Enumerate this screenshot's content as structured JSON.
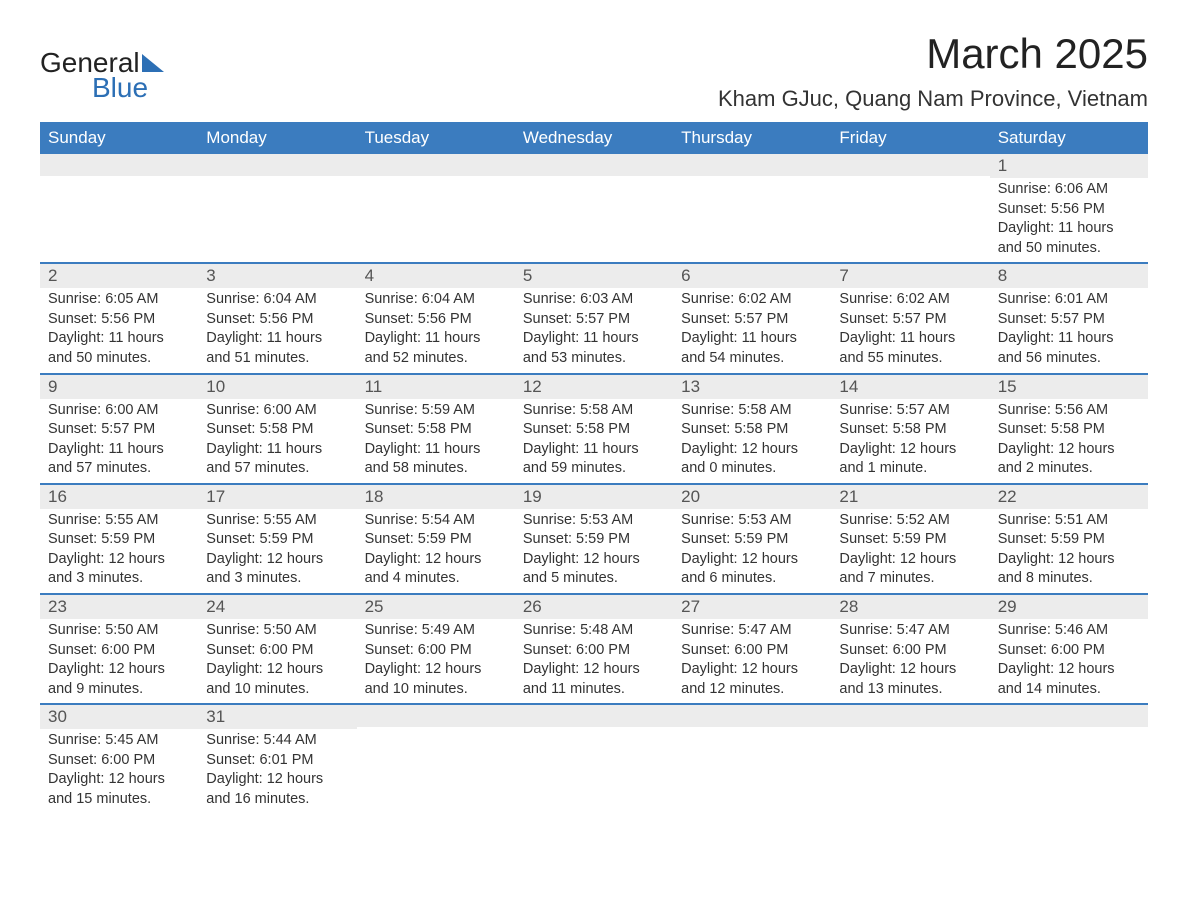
{
  "brand": {
    "name1": "General",
    "name2": "Blue"
  },
  "title": "March 2025",
  "location": "Kham GJuc, Quang Nam Province, Vietnam",
  "colors": {
    "header_bg": "#3b7cbf",
    "header_text": "#ffffff",
    "daynum_bg": "#ececec",
    "row_border": "#3b7cbf",
    "brand_blue": "#2c6fb5",
    "text": "#333333",
    "bg": "#ffffff"
  },
  "typography": {
    "title_fontsize_pt": 32,
    "location_fontsize_pt": 17,
    "header_fontsize_pt": 13,
    "daynum_fontsize_pt": 13,
    "body_fontsize_pt": 11
  },
  "layout": {
    "type": "calendar-table",
    "columns": 7,
    "rows": 6,
    "first_day_column": 6,
    "days_in_month": 31
  },
  "weekdays": [
    "Sunday",
    "Monday",
    "Tuesday",
    "Wednesday",
    "Thursday",
    "Friday",
    "Saturday"
  ],
  "labels": {
    "sunrise": "Sunrise:",
    "sunset": "Sunset:",
    "daylight": "Daylight:"
  },
  "days": [
    {
      "n": 1,
      "sunrise": "6:06 AM",
      "sunset": "5:56 PM",
      "daylight": "11 hours and 50 minutes."
    },
    {
      "n": 2,
      "sunrise": "6:05 AM",
      "sunset": "5:56 PM",
      "daylight": "11 hours and 50 minutes."
    },
    {
      "n": 3,
      "sunrise": "6:04 AM",
      "sunset": "5:56 PM",
      "daylight": "11 hours and 51 minutes."
    },
    {
      "n": 4,
      "sunrise": "6:04 AM",
      "sunset": "5:56 PM",
      "daylight": "11 hours and 52 minutes."
    },
    {
      "n": 5,
      "sunrise": "6:03 AM",
      "sunset": "5:57 PM",
      "daylight": "11 hours and 53 minutes."
    },
    {
      "n": 6,
      "sunrise": "6:02 AM",
      "sunset": "5:57 PM",
      "daylight": "11 hours and 54 minutes."
    },
    {
      "n": 7,
      "sunrise": "6:02 AM",
      "sunset": "5:57 PM",
      "daylight": "11 hours and 55 minutes."
    },
    {
      "n": 8,
      "sunrise": "6:01 AM",
      "sunset": "5:57 PM",
      "daylight": "11 hours and 56 minutes."
    },
    {
      "n": 9,
      "sunrise": "6:00 AM",
      "sunset": "5:57 PM",
      "daylight": "11 hours and 57 minutes."
    },
    {
      "n": 10,
      "sunrise": "6:00 AM",
      "sunset": "5:58 PM",
      "daylight": "11 hours and 57 minutes."
    },
    {
      "n": 11,
      "sunrise": "5:59 AM",
      "sunset": "5:58 PM",
      "daylight": "11 hours and 58 minutes."
    },
    {
      "n": 12,
      "sunrise": "5:58 AM",
      "sunset": "5:58 PM",
      "daylight": "11 hours and 59 minutes."
    },
    {
      "n": 13,
      "sunrise": "5:58 AM",
      "sunset": "5:58 PM",
      "daylight": "12 hours and 0 minutes."
    },
    {
      "n": 14,
      "sunrise": "5:57 AM",
      "sunset": "5:58 PM",
      "daylight": "12 hours and 1 minute."
    },
    {
      "n": 15,
      "sunrise": "5:56 AM",
      "sunset": "5:58 PM",
      "daylight": "12 hours and 2 minutes."
    },
    {
      "n": 16,
      "sunrise": "5:55 AM",
      "sunset": "5:59 PM",
      "daylight": "12 hours and 3 minutes."
    },
    {
      "n": 17,
      "sunrise": "5:55 AM",
      "sunset": "5:59 PM",
      "daylight": "12 hours and 3 minutes."
    },
    {
      "n": 18,
      "sunrise": "5:54 AM",
      "sunset": "5:59 PM",
      "daylight": "12 hours and 4 minutes."
    },
    {
      "n": 19,
      "sunrise": "5:53 AM",
      "sunset": "5:59 PM",
      "daylight": "12 hours and 5 minutes."
    },
    {
      "n": 20,
      "sunrise": "5:53 AM",
      "sunset": "5:59 PM",
      "daylight": "12 hours and 6 minutes."
    },
    {
      "n": 21,
      "sunrise": "5:52 AM",
      "sunset": "5:59 PM",
      "daylight": "12 hours and 7 minutes."
    },
    {
      "n": 22,
      "sunrise": "5:51 AM",
      "sunset": "5:59 PM",
      "daylight": "12 hours and 8 minutes."
    },
    {
      "n": 23,
      "sunrise": "5:50 AM",
      "sunset": "6:00 PM",
      "daylight": "12 hours and 9 minutes."
    },
    {
      "n": 24,
      "sunrise": "5:50 AM",
      "sunset": "6:00 PM",
      "daylight": "12 hours and 10 minutes."
    },
    {
      "n": 25,
      "sunrise": "5:49 AM",
      "sunset": "6:00 PM",
      "daylight": "12 hours and 10 minutes."
    },
    {
      "n": 26,
      "sunrise": "5:48 AM",
      "sunset": "6:00 PM",
      "daylight": "12 hours and 11 minutes."
    },
    {
      "n": 27,
      "sunrise": "5:47 AM",
      "sunset": "6:00 PM",
      "daylight": "12 hours and 12 minutes."
    },
    {
      "n": 28,
      "sunrise": "5:47 AM",
      "sunset": "6:00 PM",
      "daylight": "12 hours and 13 minutes."
    },
    {
      "n": 29,
      "sunrise": "5:46 AM",
      "sunset": "6:00 PM",
      "daylight": "12 hours and 14 minutes."
    },
    {
      "n": 30,
      "sunrise": "5:45 AM",
      "sunset": "6:00 PM",
      "daylight": "12 hours and 15 minutes."
    },
    {
      "n": 31,
      "sunrise": "5:44 AM",
      "sunset": "6:01 PM",
      "daylight": "12 hours and 16 minutes."
    }
  ]
}
